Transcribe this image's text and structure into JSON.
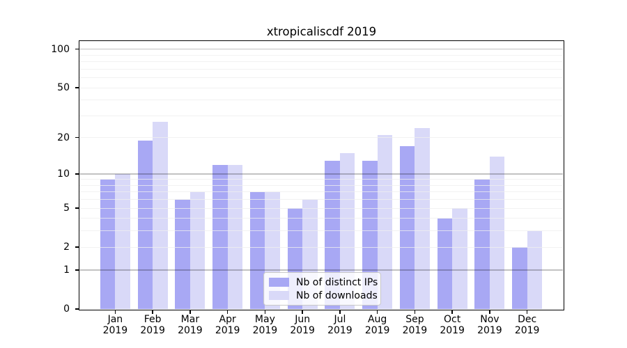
{
  "chart_data": {
    "type": "bar",
    "title": "xtropicaliscdf 2019",
    "xlabel": "",
    "ylabel": "",
    "categories": [
      "Jan",
      "Feb",
      "Mar",
      "Apr",
      "May",
      "Jun",
      "Jul",
      "Aug",
      "Sep",
      "Oct",
      "Nov",
      "Dec"
    ],
    "category_year": "2019",
    "series": [
      {
        "name": "Nb of distinct IPs",
        "color": "#a8a8f4",
        "values": [
          9,
          19,
          6,
          12,
          7,
          5,
          13,
          13,
          17,
          4,
          9,
          2
        ]
      },
      {
        "name": "Nb of downloads",
        "color": "#d9d9f8",
        "values": [
          10,
          27,
          7,
          12,
          7,
          6,
          15,
          21,
          24,
          5,
          14,
          3
        ]
      }
    ],
    "yscale": "log10(1+y)",
    "ylim": [
      0,
      117
    ],
    "yticks": [
      0,
      1,
      2,
      5,
      10,
      20,
      50,
      100
    ],
    "major_gridlines": [
      1,
      10,
      100
    ],
    "minor_gridlines": [
      2,
      3,
      4,
      5,
      6,
      7,
      8,
      9,
      20,
      30,
      40,
      50,
      60,
      70,
      80,
      90
    ],
    "grid": true,
    "legend_position": "lower center"
  }
}
